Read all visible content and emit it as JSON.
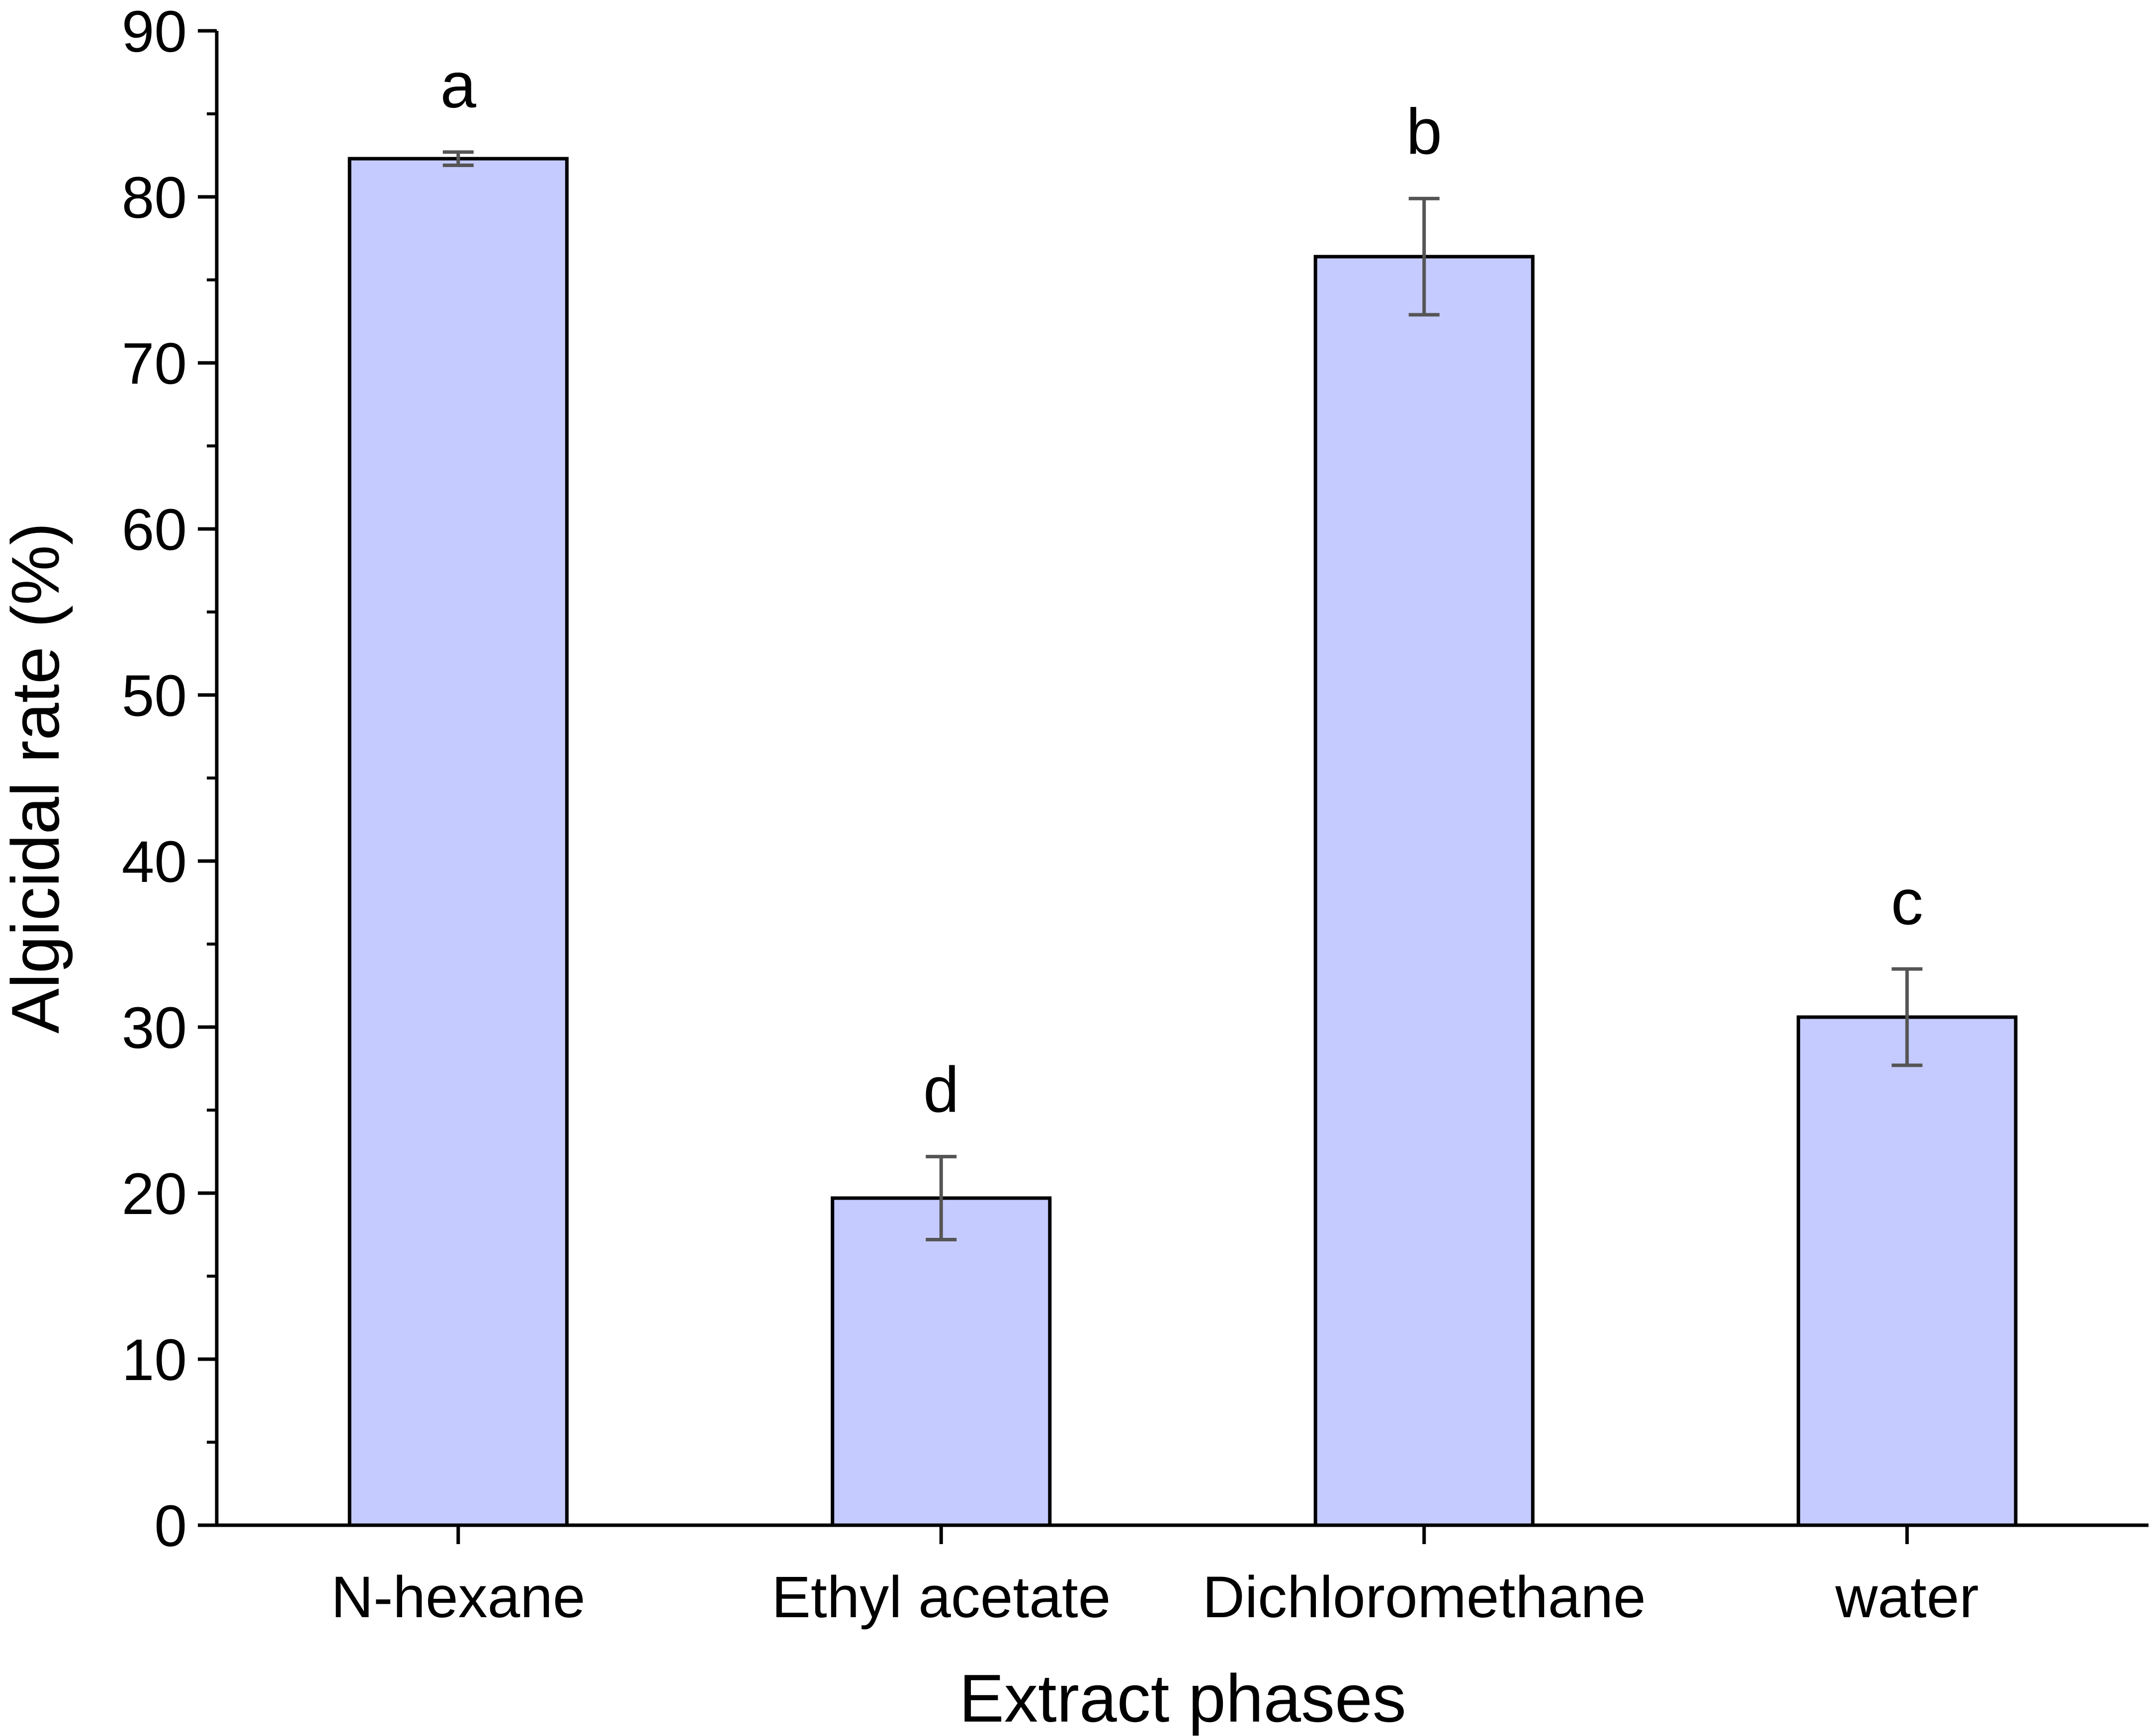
{
  "chart_data": {
    "type": "bar",
    "categories": [
      "N-hexane",
      "Ethyl acetate",
      "Dichloromethane",
      "water"
    ],
    "values": [
      82.3,
      19.7,
      76.4,
      30.6
    ],
    "errors": [
      0.4,
      2.5,
      3.5,
      2.9
    ],
    "significance_labels": [
      "a",
      "d",
      "b",
      "c"
    ],
    "title": "",
    "xlabel": "Extract phases",
    "ylabel": "Algicidal rate (%)",
    "ylim": [
      0,
      90
    ],
    "yticks": [
      0,
      10,
      20,
      30,
      40,
      50,
      60,
      70,
      80,
      90
    ],
    "grid": false,
    "bar_color": "#c5cbff",
    "bar_edge_color": "#000000",
    "error_bar_color": "#555555"
  }
}
